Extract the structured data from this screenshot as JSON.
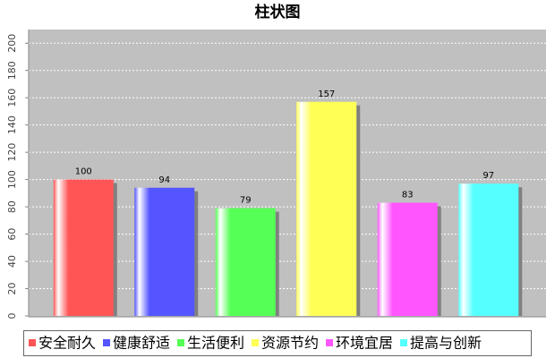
{
  "chart_data": {
    "type": "bar",
    "title": "柱状图",
    "categories": [
      null
    ],
    "series": [
      {
        "name": "安全耐久",
        "color": "#ff5555",
        "values": [
          100
        ]
      },
      {
        "name": "健康舒适",
        "color": "#5555ff",
        "values": [
          94
        ]
      },
      {
        "name": "生活便利",
        "color": "#55ff55",
        "values": [
          79
        ]
      },
      {
        "name": "资源节约",
        "color": "#ffff55",
        "values": [
          157
        ]
      },
      {
        "name": "环境宜居",
        "color": "#ff55ff",
        "values": [
          83
        ]
      },
      {
        "name": "提高与创新",
        "color": "#55ffff",
        "values": [
          97
        ]
      }
    ],
    "ylim": [
      0,
      210
    ],
    "yticks": [
      0,
      20,
      40,
      60,
      80,
      100,
      120,
      140,
      160,
      180,
      200
    ],
    "grid": true
  }
}
